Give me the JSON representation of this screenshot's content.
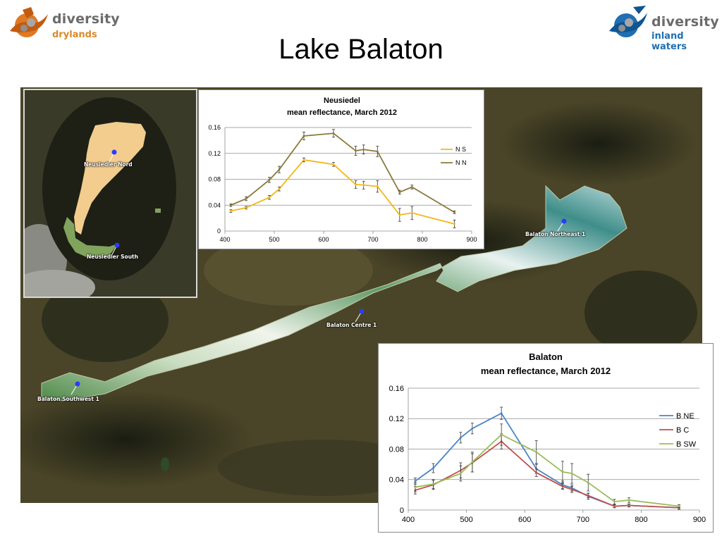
{
  "logos": {
    "left": {
      "name": "diversity",
      "sub": "drylands"
    },
    "right": {
      "name": "diversity",
      "sub": "inland waters"
    }
  },
  "title": "Lake Balaton",
  "map_labels": {
    "neusiedler_nord": "Neusiedler Nord",
    "neusiedler_south": "Neusiedler South",
    "balaton_northeast": "Balaton Northeast 1",
    "balaton_centre": "Balaton Centre 1",
    "balaton_southwest": "Balaton Southwest 1"
  },
  "colors": {
    "NS": "#f2b716",
    "NN": "#8b7a3a",
    "BNE": "#4a86c5",
    "BC": "#c0504d",
    "BSW": "#9bbb59",
    "marker": "#2a3cff"
  },
  "chart_data": [
    {
      "type": "line",
      "title": "Neusiedel",
      "subtitle": "mean reflectance, March 2012",
      "x": [
        412,
        443,
        490,
        510,
        560,
        620,
        665,
        681,
        709,
        754,
        779,
        865
      ],
      "xlim": [
        400,
        900
      ],
      "ylim": [
        0,
        0.16
      ],
      "xticks": [
        400,
        500,
        600,
        700,
        800,
        900
      ],
      "yticks": [
        0,
        0.04,
        0.08,
        0.12,
        0.16
      ],
      "ytick_labels": [
        "0",
        "0.04",
        "0.08",
        "0.12",
        "0.16"
      ],
      "grid": true,
      "legend_position": "right",
      "series": [
        {
          "name": "N S",
          "color_key": "NS",
          "values": [
            0.031,
            0.036,
            0.052,
            0.065,
            0.11,
            0.103,
            0.072,
            0.071,
            0.069,
            0.025,
            0.028,
            0.011
          ],
          "err": [
            0.002,
            0.002,
            0.003,
            0.003,
            0.003,
            0.003,
            0.006,
            0.006,
            0.009,
            0.01,
            0.01,
            0.006
          ]
        },
        {
          "name": "N N",
          "color_key": "NN",
          "values": [
            0.04,
            0.05,
            0.079,
            0.095,
            0.147,
            0.151,
            0.124,
            0.126,
            0.123,
            0.06,
            0.068,
            0.029
          ],
          "err": [
            0.002,
            0.003,
            0.004,
            0.005,
            0.006,
            0.006,
            0.007,
            0.007,
            0.008,
            0.003,
            0.003,
            0.002
          ]
        }
      ]
    },
    {
      "type": "line",
      "title": "Balaton",
      "subtitle": "mean reflectance, March 2012",
      "x": [
        412,
        443,
        490,
        510,
        560,
        620,
        665,
        681,
        709,
        754,
        779,
        865
      ],
      "xlim": [
        400,
        900
      ],
      "ylim": [
        0,
        0.16
      ],
      "xticks": [
        400,
        500,
        600,
        700,
        800,
        900
      ],
      "yticks": [
        0,
        0.04,
        0.08,
        0.12,
        0.16
      ],
      "ytick_labels": [
        "0",
        "0.04",
        "0.08",
        "0.12",
        "0.16"
      ],
      "grid": true,
      "legend_position": "right",
      "series": [
        {
          "name": "B NE",
          "color_key": "BNE",
          "values": [
            0.038,
            0.055,
            0.095,
            0.107,
            0.127,
            0.054,
            0.033,
            0.029,
            0.018,
            0.005,
            0.006,
            0.003
          ],
          "err": [
            0.004,
            0.006,
            0.007,
            0.007,
            0.008,
            0.006,
            0.005,
            0.004,
            0.004,
            0.002,
            0.002,
            0.002
          ]
        },
        {
          "name": "B C",
          "color_key": "BC",
          "values": [
            0.026,
            0.033,
            0.052,
            0.062,
            0.09,
            0.049,
            0.031,
            0.027,
            0.019,
            0.005,
            0.006,
            0.003
          ],
          "err": [
            0.005,
            0.006,
            0.01,
            0.012,
            0.01,
            0.005,
            0.004,
            0.004,
            0.003,
            0.002,
            0.002,
            0.002
          ]
        },
        {
          "name": "B SW",
          "color_key": "BSW",
          "values": [
            0.03,
            0.034,
            0.048,
            0.063,
            0.099,
            0.076,
            0.05,
            0.048,
            0.036,
            0.011,
            0.013,
            0.005
          ],
          "err": [
            0.006,
            0.006,
            0.01,
            0.013,
            0.014,
            0.015,
            0.014,
            0.013,
            0.011,
            0.003,
            0.003,
            0.002
          ]
        }
      ]
    }
  ]
}
